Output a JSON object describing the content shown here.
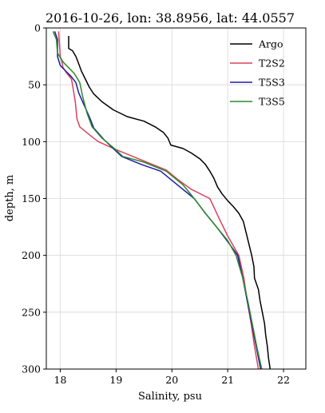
{
  "chart_data": {
    "type": "line",
    "title": "2016-10-26,  lon: 38.8956,  lat: 44.0557",
    "xlabel": "Salinity, psu",
    "ylabel": "depth, m",
    "xlim": [
      17.75,
      22.4
    ],
    "ylim": [
      300,
      0
    ],
    "y_inverted": true,
    "xticks": [
      18,
      19,
      20,
      21,
      22
    ],
    "yticks": [
      0,
      50,
      100,
      150,
      200,
      250,
      300
    ],
    "grid": true,
    "legend_position": "top-right",
    "series": [
      {
        "name": "Argo",
        "color": "#000000",
        "points": [
          [
            18.15,
            7
          ],
          [
            18.15,
            18
          ],
          [
            18.22,
            20
          ],
          [
            18.28,
            25
          ],
          [
            18.32,
            30
          ],
          [
            18.38,
            38
          ],
          [
            18.45,
            45
          ],
          [
            18.52,
            52
          ],
          [
            18.6,
            58
          ],
          [
            18.75,
            65
          ],
          [
            18.95,
            72
          ],
          [
            19.2,
            78
          ],
          [
            19.5,
            82
          ],
          [
            19.7,
            87
          ],
          [
            19.85,
            92
          ],
          [
            19.93,
            97
          ],
          [
            19.98,
            103
          ],
          [
            20.2,
            106
          ],
          [
            20.35,
            110
          ],
          [
            20.5,
            115
          ],
          [
            20.6,
            120
          ],
          [
            20.68,
            126
          ],
          [
            20.75,
            132
          ],
          [
            20.82,
            140
          ],
          [
            20.9,
            146
          ],
          [
            21.0,
            152
          ],
          [
            21.1,
            157
          ],
          [
            21.2,
            163
          ],
          [
            21.28,
            170
          ],
          [
            21.33,
            180
          ],
          [
            21.38,
            190
          ],
          [
            21.43,
            200
          ],
          [
            21.47,
            210
          ],
          [
            21.48,
            220
          ],
          [
            21.55,
            230
          ],
          [
            21.58,
            240
          ],
          [
            21.62,
            250
          ],
          [
            21.66,
            260
          ],
          [
            21.68,
            270
          ],
          [
            21.71,
            280
          ],
          [
            21.73,
            290
          ],
          [
            21.76,
            300
          ]
        ]
      },
      {
        "name": "T2S2",
        "color": "#d9435d",
        "points": [
          [
            17.97,
            3
          ],
          [
            18.0,
            25
          ],
          [
            18.02,
            28
          ],
          [
            18.05,
            35
          ],
          [
            18.12,
            40
          ],
          [
            18.2,
            45
          ],
          [
            18.22,
            50
          ],
          [
            18.27,
            65
          ],
          [
            18.3,
            80
          ],
          [
            18.35,
            87
          ],
          [
            18.5,
            93
          ],
          [
            18.68,
            100
          ],
          [
            19.0,
            107
          ],
          [
            19.3,
            113
          ],
          [
            19.65,
            120
          ],
          [
            19.9,
            125
          ],
          [
            20.1,
            133
          ],
          [
            20.35,
            142
          ],
          [
            20.68,
            150
          ],
          [
            20.85,
            168
          ],
          [
            21.0,
            183
          ],
          [
            21.2,
            200
          ],
          [
            21.29,
            220
          ],
          [
            21.35,
            240
          ],
          [
            21.42,
            260
          ],
          [
            21.48,
            280
          ],
          [
            21.55,
            300
          ]
        ]
      },
      {
        "name": "T5S3",
        "color": "#1f1aa6",
        "points": [
          [
            17.9,
            3
          ],
          [
            17.95,
            10
          ],
          [
            17.95,
            25
          ],
          [
            18.0,
            33
          ],
          [
            18.1,
            38
          ],
          [
            18.2,
            43
          ],
          [
            18.28,
            48
          ],
          [
            18.33,
            57
          ],
          [
            18.42,
            67
          ],
          [
            18.52,
            78
          ],
          [
            18.6,
            88
          ],
          [
            18.78,
            98
          ],
          [
            18.95,
            106
          ],
          [
            19.1,
            113
          ],
          [
            19.45,
            120
          ],
          [
            19.8,
            126
          ],
          [
            20.1,
            138
          ],
          [
            20.4,
            150
          ],
          [
            20.6,
            163
          ],
          [
            20.8,
            175
          ],
          [
            21.0,
            188
          ],
          [
            21.18,
            200
          ],
          [
            21.27,
            220
          ],
          [
            21.35,
            240
          ],
          [
            21.43,
            260
          ],
          [
            21.51,
            280
          ],
          [
            21.59,
            300
          ]
        ]
      },
      {
        "name": "T3S5",
        "color": "#2e8a2e",
        "points": [
          [
            17.87,
            3
          ],
          [
            17.93,
            10
          ],
          [
            17.95,
            22
          ],
          [
            18.05,
            30
          ],
          [
            18.15,
            35
          ],
          [
            18.25,
            40
          ],
          [
            18.35,
            48
          ],
          [
            18.4,
            60
          ],
          [
            18.48,
            75
          ],
          [
            18.57,
            87
          ],
          [
            18.75,
            97
          ],
          [
            18.97,
            106
          ],
          [
            19.12,
            113
          ],
          [
            19.5,
            118
          ],
          [
            19.9,
            126
          ],
          [
            20.2,
            138
          ],
          [
            20.4,
            150
          ],
          [
            20.6,
            163
          ],
          [
            20.8,
            175
          ],
          [
            21.0,
            187
          ],
          [
            21.15,
            200
          ],
          [
            21.27,
            220
          ],
          [
            21.36,
            240
          ],
          [
            21.44,
            260
          ],
          [
            21.52,
            280
          ],
          [
            21.61,
            300
          ]
        ]
      }
    ]
  }
}
